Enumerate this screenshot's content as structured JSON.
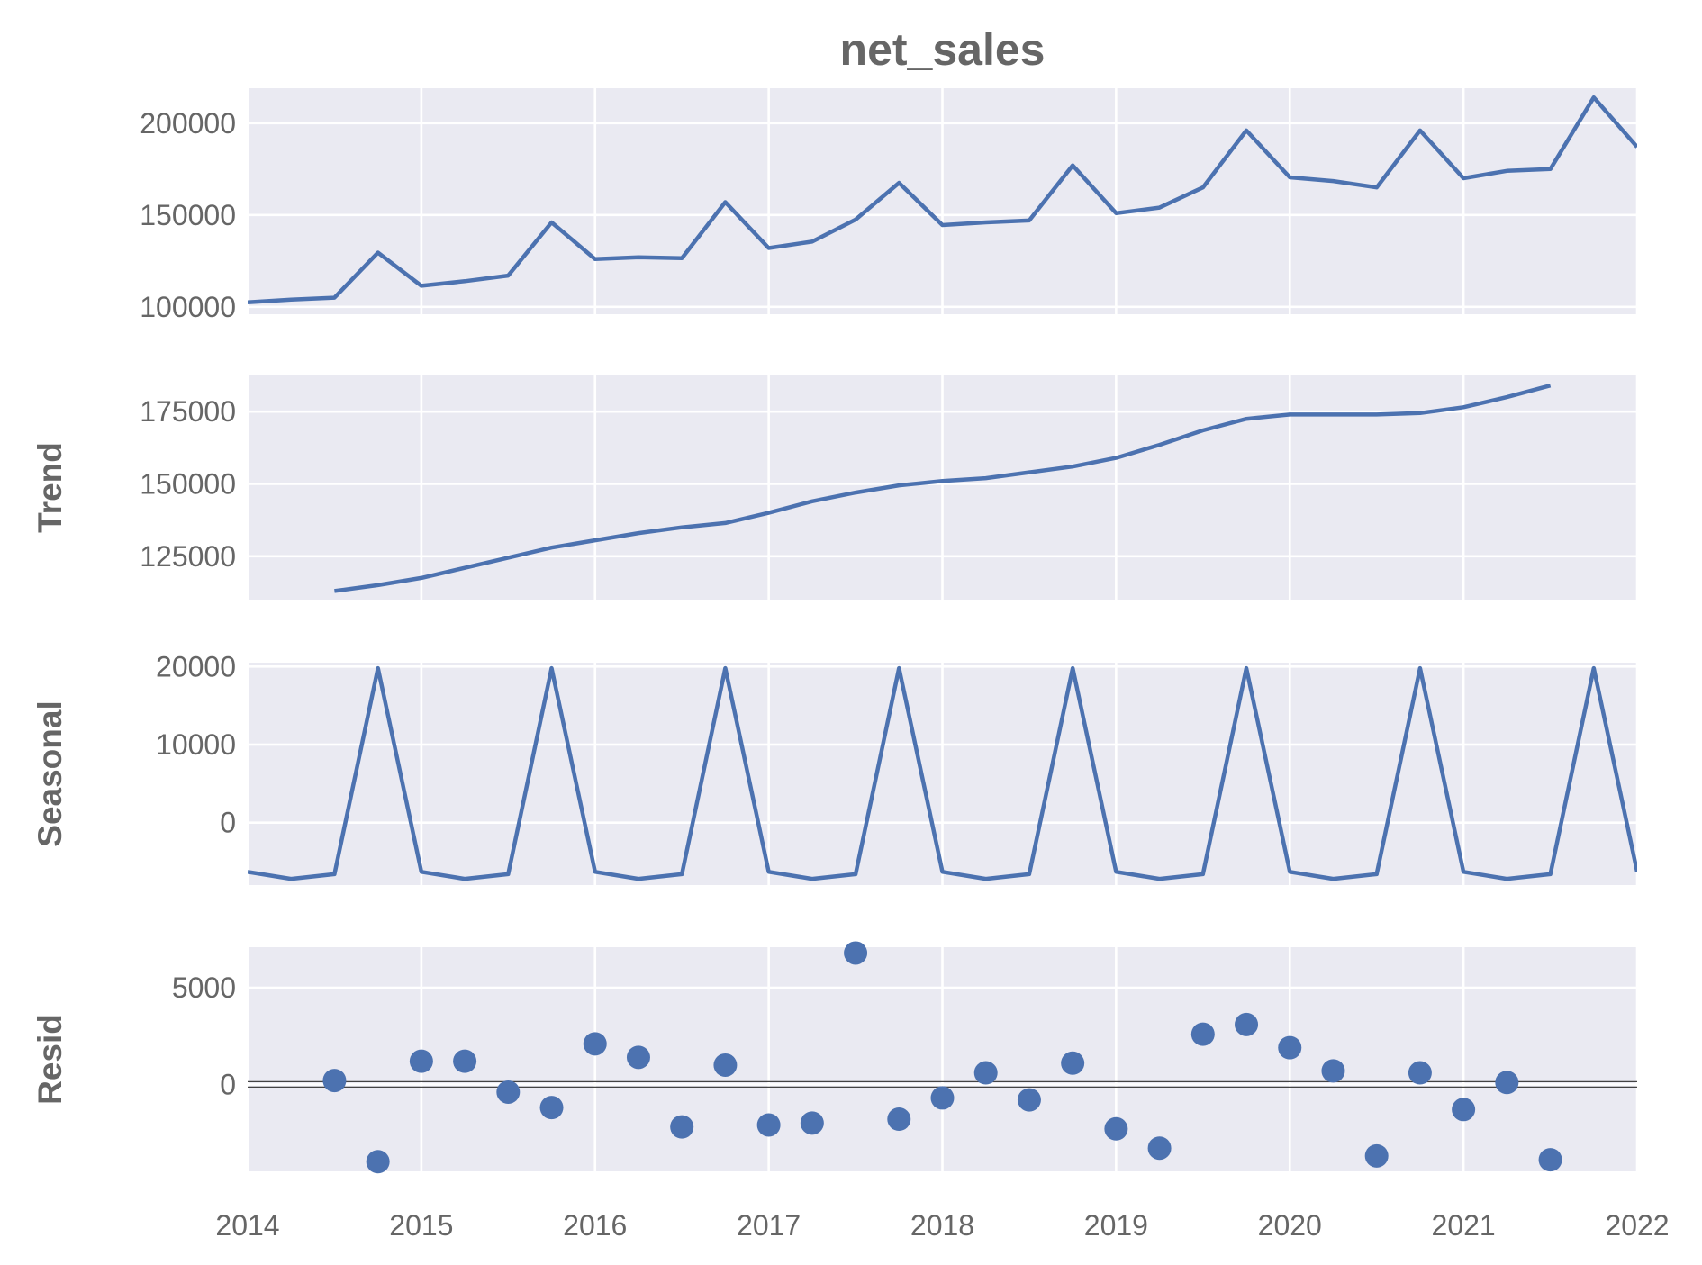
{
  "chart_data": [
    {
      "type": "line",
      "title": "net_sales",
      "ylabel": "",
      "x": [
        2014.0,
        2014.25,
        2014.5,
        2014.75,
        2015.0,
        2015.25,
        2015.5,
        2015.75,
        2016.0,
        2016.25,
        2016.5,
        2016.75,
        2017.0,
        2017.25,
        2017.5,
        2017.75,
        2018.0,
        2018.25,
        2018.5,
        2018.75,
        2019.0,
        2019.25,
        2019.5,
        2019.75,
        2020.0,
        2020.25,
        2020.5,
        2020.75,
        2021.0,
        2021.25,
        2021.5,
        2021.75,
        2022.0
      ],
      "values": [
        102500,
        104000,
        105000,
        129500,
        111500,
        114000,
        117000,
        146000,
        126000,
        127000,
        126500,
        157000,
        132000,
        135500,
        147500,
        167500,
        144500,
        146000,
        147000,
        177000,
        151000,
        154000,
        165000,
        196000,
        170500,
        168500,
        165000,
        196000,
        170000,
        174000,
        175000,
        214000,
        187000
      ],
      "ylim": [
        96000,
        219000
      ],
      "yticks": [
        100000,
        150000,
        200000
      ]
    },
    {
      "type": "line",
      "ylabel": "Trend",
      "x": [
        2014.5,
        2014.75,
        2015.0,
        2015.25,
        2015.5,
        2015.75,
        2016.0,
        2016.25,
        2016.5,
        2016.75,
        2017.0,
        2017.25,
        2017.5,
        2017.75,
        2018.0,
        2018.25,
        2018.5,
        2018.75,
        2019.0,
        2019.25,
        2019.5,
        2019.75,
        2020.0,
        2020.25,
        2020.5,
        2020.75,
        2021.0,
        2021.25,
        2021.5
      ],
      "values": [
        113000,
        115000,
        117500,
        121000,
        124500,
        128000,
        130500,
        133000,
        135000,
        136500,
        140000,
        144000,
        147000,
        149500,
        151000,
        152000,
        154000,
        156000,
        159000,
        163500,
        168500,
        172500,
        174000,
        174000,
        174000,
        174500,
        176500,
        180000,
        184000
      ],
      "ylim": [
        110000,
        187500
      ],
      "yticks": [
        125000,
        150000,
        175000
      ]
    },
    {
      "type": "line",
      "ylabel": "Seasonal",
      "x": [
        2014.0,
        2014.25,
        2014.5,
        2014.75,
        2015.0,
        2015.25,
        2015.5,
        2015.75,
        2016.0,
        2016.25,
        2016.5,
        2016.75,
        2017.0,
        2017.25,
        2017.5,
        2017.75,
        2018.0,
        2018.25,
        2018.5,
        2018.75,
        2019.0,
        2019.25,
        2019.5,
        2019.75,
        2020.0,
        2020.25,
        2020.5,
        2020.75,
        2021.0,
        2021.25,
        2021.5,
        2021.75,
        2022.0
      ],
      "values": [
        -6300,
        -7200,
        -6600,
        19800,
        -6300,
        -7200,
        -6600,
        19800,
        -6300,
        -7200,
        -6600,
        19800,
        -6300,
        -7200,
        -6600,
        19800,
        -6300,
        -7200,
        -6600,
        19800,
        -6300,
        -7200,
        -6600,
        19800,
        -6300,
        -7200,
        -6600,
        19800,
        -6300,
        -7200,
        -6600,
        19800,
        -6300
      ],
      "ylim": [
        -8000,
        20500
      ],
      "yticks": [
        0,
        10000,
        20000
      ]
    },
    {
      "type": "scatter",
      "ylabel": "Resid",
      "x": [
        2014.5,
        2014.75,
        2015.0,
        2015.25,
        2015.5,
        2015.75,
        2016.0,
        2016.25,
        2016.5,
        2016.75,
        2017.0,
        2017.25,
        2017.5,
        2017.75,
        2018.0,
        2018.25,
        2018.5,
        2018.75,
        2019.0,
        2019.25,
        2019.5,
        2019.75,
        2020.0,
        2020.25,
        2020.5,
        2020.75,
        2021.0,
        2021.25,
        2021.5
      ],
      "values": [
        200,
        -4000,
        1200,
        1200,
        -400,
        -1200,
        2100,
        1400,
        -2200,
        1000,
        -2100,
        -2000,
        6800,
        -1800,
        -700,
        600,
        -800,
        1100,
        -2300,
        -3300,
        2600,
        3100,
        1900,
        700,
        -3700,
        600,
        -1300,
        100,
        -3900
      ],
      "ylim": [
        -4500,
        7100
      ],
      "yticks": [
        0,
        5000
      ],
      "baseline": 0
    }
  ],
  "x_axis": {
    "xlim": [
      2014,
      2022
    ],
    "ticks": [
      2014,
      2015,
      2016,
      2017,
      2018,
      2019,
      2020,
      2021,
      2022
    ],
    "tick_labels": [
      "2014",
      "2015",
      "2016",
      "2017",
      "2018",
      "2019",
      "2020",
      "2021",
      "2022"
    ]
  },
  "colors": {
    "series": "#4c72b0",
    "panel_background": "#eaeaf2",
    "grid": "#ffffff",
    "text": "#666666"
  },
  "grid": true
}
